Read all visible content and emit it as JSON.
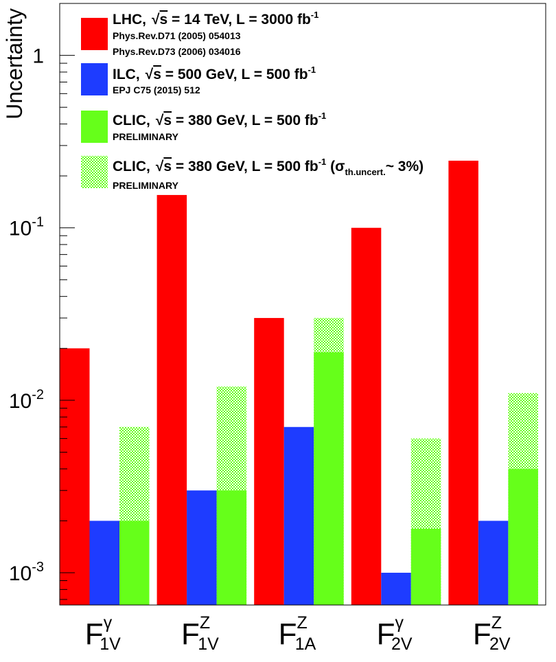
{
  "chart_data": {
    "type": "bar",
    "ylabel": "Uncertainty",
    "yscale": "log",
    "ylim": [
      0.00065,
      2.0
    ],
    "ytick_labels": [
      {
        "value": 1,
        "label": "1"
      },
      {
        "value": 0.1,
        "base": "10",
        "exp": "-1"
      },
      {
        "value": 0.01,
        "base": "10",
        "exp": "-2"
      },
      {
        "value": 0.001,
        "base": "10",
        "exp": "-3"
      }
    ],
    "categories": [
      {
        "base": "F",
        "sup": "γ",
        "sub": "1V"
      },
      {
        "base": "F",
        "sup": "Z",
        "sub": "1V"
      },
      {
        "base": "F",
        "sup": "Z",
        "sub": "1A"
      },
      {
        "base": "F",
        "sup": "γ",
        "sub": "2V"
      },
      {
        "base": "F",
        "sup": "Z",
        "sub": "2V"
      }
    ],
    "series": [
      {
        "name": "LHC",
        "color": "#ff0000",
        "values": [
          0.02,
          0.155,
          0.03,
          0.1,
          0.245
        ]
      },
      {
        "name": "ILC",
        "color": "#1e3cff",
        "values": [
          0.002,
          0.003,
          0.007,
          0.001,
          0.002
        ]
      },
      {
        "name": "CLIC",
        "color": "#66ff1a",
        "values": [
          0.002,
          0.003,
          0.019,
          0.0018,
          0.004
        ]
      },
      {
        "name": "CLIC (σth.uncert. ~ 3%)",
        "color": "#66ff1a",
        "pattern": "hatched",
        "values": [
          0.007,
          0.012,
          0.03,
          0.006,
          0.011
        ]
      }
    ],
    "legend": {
      "position": "top-left",
      "entries": [
        {
          "color": "#ff0000",
          "pattern": "solid",
          "pre": "LHC,",
          "sqrt": "s",
          "mid": " = 14 TeV, L = 3000 fb",
          "sup": "-1",
          "notes": [
            "Phys.Rev.D71 (2005) 054013",
            "Phys.Rev.D73 (2006) 034016"
          ]
        },
        {
          "color": "#1e3cff",
          "pattern": "solid",
          "pre": "ILC,",
          "sqrt": "s",
          "mid": " = 500 GeV, L = 500 fb",
          "sup": "-1",
          "notes": [
            "EPJ C75 (2015) 512"
          ]
        },
        {
          "color": "#66ff1a",
          "pattern": "solid",
          "pre": "CLIC,",
          "sqrt": "s",
          "mid": " = 380 GeV, L = 500 fb",
          "sup": "-1",
          "notes": [
            "PRELIMINARY"
          ]
        },
        {
          "color": "#66ff1a",
          "pattern": "hatched",
          "pre": "CLIC,",
          "sqrt": "s",
          "mid": " = 380 GeV, L = 500 fb",
          "sup": "-1",
          "extra_open": " (",
          "sigma": "σ",
          "sigma_sub": "th.uncert.",
          "extra_close": "~ 3%)",
          "notes": [
            "PRELIMINARY"
          ]
        }
      ]
    }
  }
}
